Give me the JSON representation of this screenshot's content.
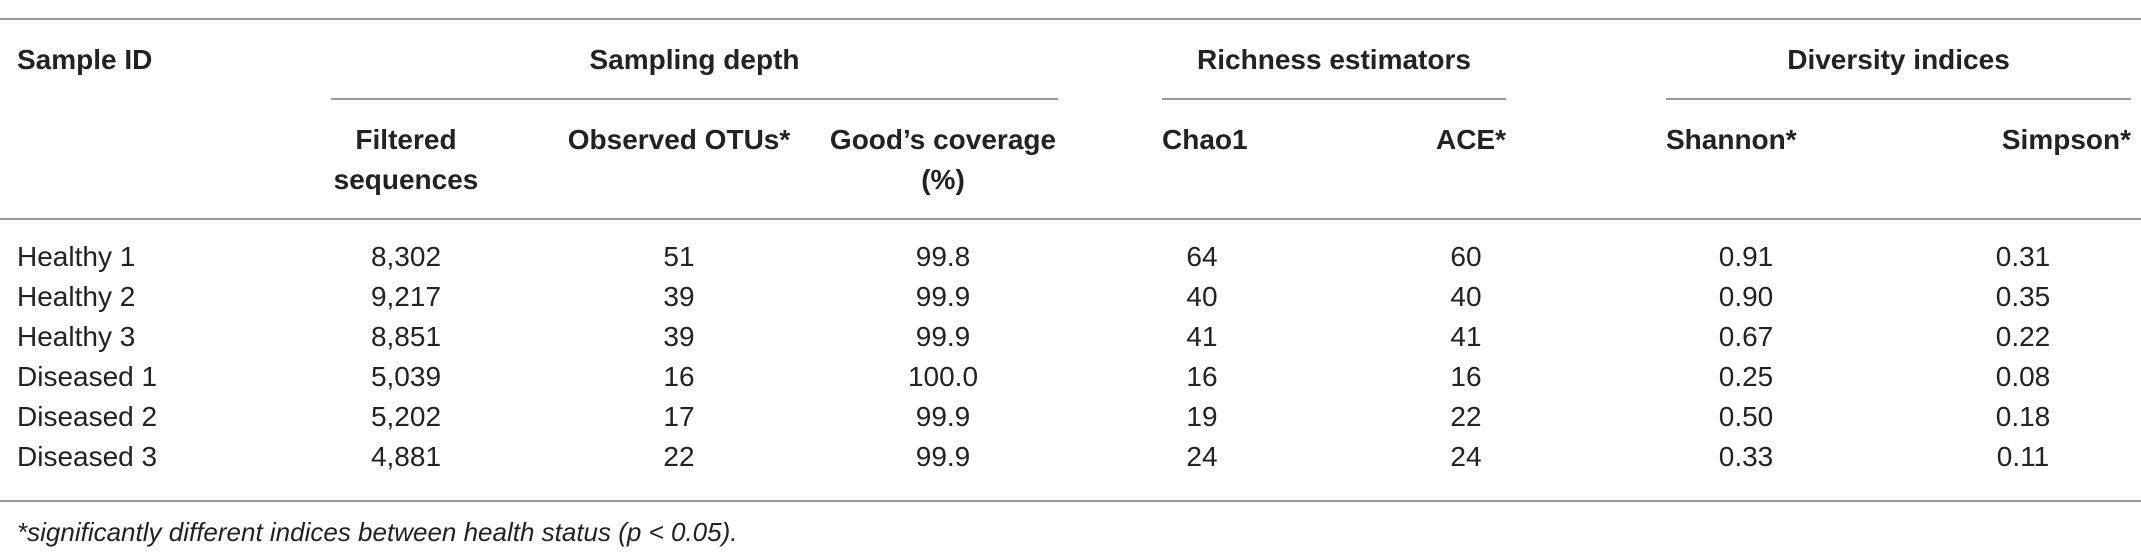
{
  "table": {
    "sample_id_header": "Sample ID",
    "groups": {
      "sampling_depth": "Sampling depth",
      "richness_estimators": "Richness estimators",
      "diversity_indices": "Diversity indices"
    },
    "columns": {
      "filtered_line1": "Filtered",
      "filtered_line2": "sequences",
      "observed_otus": "Observed OTUs*",
      "goods_line1": "Good’s coverage",
      "goods_line2": "(%)",
      "chao1": "Chao1",
      "ace": "ACE*",
      "shannon": "Shannon*",
      "simpson": "Simpson*"
    },
    "rows": [
      [
        "Healthy 1",
        "8,302",
        "51",
        "99.8",
        "64",
        "60",
        "0.91",
        "0.31"
      ],
      [
        "Healthy 2",
        "9,217",
        "39",
        "99.9",
        "40",
        "40",
        "0.90",
        "0.35"
      ],
      [
        "Healthy 3",
        "8,851",
        "39",
        "99.9",
        "41",
        "41",
        "0.67",
        "0.22"
      ],
      [
        "Diseased 1",
        "5,039",
        "16",
        "100.0",
        "16",
        "16",
        "0.25",
        "0.08"
      ],
      [
        "Diseased 2",
        "5,202",
        "17",
        "99.9",
        "19",
        "22",
        "0.50",
        "0.18"
      ],
      [
        "Diseased 3",
        "4,881",
        "22",
        "99.9",
        "24",
        "24",
        "0.33",
        "0.11"
      ]
    ]
  },
  "footnote": "*significantly different indices between health status (p < 0.05)."
}
